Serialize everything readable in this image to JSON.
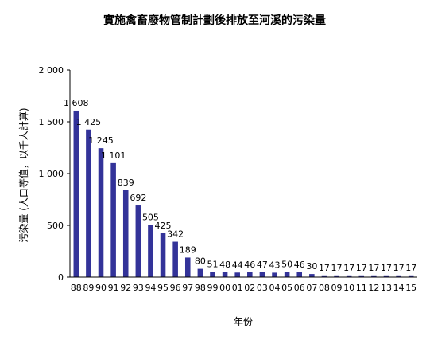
{
  "chart_data": {
    "type": "bar",
    "title": "實施禽畜廢物管制計劃後排放至河溪的污染量",
    "xlabel": "年份",
    "ylabel": "污染量 (人口等值，以千人計算)",
    "ylim": [
      0,
      2000
    ],
    "yticks": [
      "0",
      "500",
      "1 000",
      "1 500",
      "2 000"
    ],
    "yticks_values": [
      0,
      500,
      1000,
      1500,
      2000
    ],
    "grid": false,
    "legend": "none",
    "bar_color": "#333399",
    "categories": [
      "88",
      "89",
      "90",
      "91",
      "92",
      "93",
      "94",
      "95",
      "96",
      "97",
      "98",
      "99",
      "00",
      "01",
      "02",
      "03",
      "04",
      "05",
      "06",
      "07",
      "08",
      "09",
      "10",
      "11",
      "12",
      "13",
      "14",
      "15"
    ],
    "values": [
      1608,
      1425,
      1245,
      1101,
      839,
      692,
      505,
      425,
      342,
      189,
      80,
      51,
      48,
      44,
      46,
      47,
      43,
      50,
      46,
      30,
      17,
      17,
      17,
      17,
      17,
      17,
      17,
      17
    ],
    "data_labels": [
      "1 608",
      "1 425",
      "1 245",
      "1 101",
      "839",
      "692",
      "505",
      "425",
      "342",
      "189",
      "80",
      "51",
      "48",
      "44",
      "46",
      "47",
      "43",
      "50",
      "46",
      "30",
      "17",
      "17",
      "17",
      "17",
      "17",
      "17",
      "17",
      "17"
    ]
  }
}
